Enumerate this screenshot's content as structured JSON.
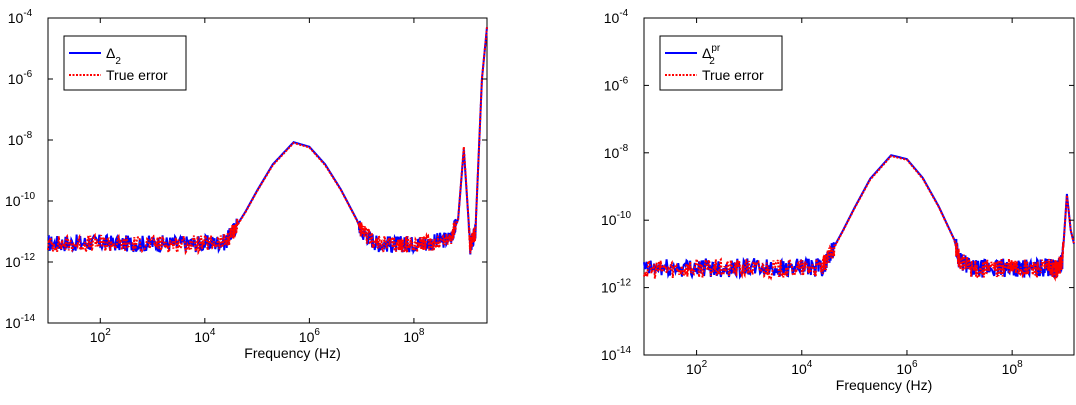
{
  "chart_data": [
    {
      "type": "line",
      "title": "",
      "xlabel": "Frequency (Hz)",
      "ylabel": "",
      "x_scale": "log",
      "y_scale": "log",
      "xlim": [
        10,
        2500000000.0
      ],
      "ylim": [
        1e-14,
        0.0001
      ],
      "xticks": [
        100,
        10000,
        1000000,
        100000000
      ],
      "xtick_labels": [
        {
          "base": "10",
          "exp": "2"
        },
        {
          "base": "10",
          "exp": "4"
        },
        {
          "base": "10",
          "exp": "6"
        },
        {
          "base": "10",
          "exp": "8"
        }
      ],
      "yticks": [
        1e-14,
        1e-12,
        1e-10,
        1e-08,
        1e-06,
        0.0001
      ],
      "ytick_labels": [
        {
          "base": "10",
          "exp": "-14"
        },
        {
          "base": "10",
          "exp": "-12"
        },
        {
          "base": "10",
          "exp": "-10"
        },
        {
          "base": "10",
          "exp": "-8"
        },
        {
          "base": "10",
          "exp": "-6"
        },
        {
          "base": "10",
          "exp": "-4"
        }
      ],
      "grid": false,
      "legend_position": "top-left",
      "series": [
        {
          "name": "Δ",
          "name_sub": "2",
          "name_sup": "",
          "color": "#0000ff",
          "style": "solid",
          "x": [
            10,
            30,
            100,
            300,
            1000,
            3000,
            10000,
            25000,
            40000,
            60000,
            100000,
            200000,
            500000,
            1000000,
            2000000,
            4000000,
            8000000,
            10000000,
            20000000,
            50000000,
            100000000,
            200000000,
            500000000,
            700000000,
            900000000,
            1200000000,
            1500000000,
            2000000000,
            2500000000
          ],
          "y": [
            4e-12,
            4.2e-12,
            4.3e-12,
            4e-12,
            4.1e-12,
            4e-12,
            4e-12,
            4.5e-12,
            1.5e-11,
            4.5e-11,
            2.2e-10,
            1.6e-09,
            8.5e-09,
            6e-09,
            1.6e-09,
            2.4e-10,
            2.5e-11,
            1e-11,
            4e-12,
            3.8e-12,
            4e-12,
            4.2e-12,
            6e-12,
            2.5e-11,
            5e-09,
            3e-12,
            1e-11,
            1e-06,
            5e-05
          ]
        },
        {
          "name": "True error",
          "name_sub": "",
          "name_sup": "",
          "color": "#ff0000",
          "style": "dotted",
          "x": [
            10,
            30,
            100,
            300,
            1000,
            3000,
            10000,
            25000,
            40000,
            60000,
            100000,
            200000,
            500000,
            1000000,
            2000000,
            4000000,
            8000000,
            10000000,
            20000000,
            50000000,
            100000000,
            200000000,
            500000000,
            700000000,
            900000000,
            1200000000,
            1500000000,
            2000000000,
            2500000000
          ],
          "y": [
            3.8e-12,
            4e-12,
            4.1e-12,
            3.9e-12,
            4e-12,
            3.9e-12,
            3.9e-12,
            4.4e-12,
            1.4e-11,
            4.3e-11,
            2.1e-10,
            1.5e-09,
            8e-09,
            5.7e-09,
            1.5e-09,
            2.3e-10,
            2.4e-11,
            1e-11,
            3.9e-12,
            3.7e-12,
            3.9e-12,
            4.1e-12,
            5.8e-12,
            2.4e-11,
            6e-09,
            3e-12,
            1e-11,
            1e-06,
            5e-05
          ]
        }
      ]
    },
    {
      "type": "line",
      "title": "",
      "xlabel": "Frequency (Hz)",
      "ylabel": "",
      "x_scale": "log",
      "y_scale": "log",
      "xlim": [
        10,
        1500000000.0
      ],
      "ylim": [
        1e-14,
        0.0001
      ],
      "xticks": [
        100,
        10000,
        1000000,
        100000000
      ],
      "xtick_labels": [
        {
          "base": "10",
          "exp": "2"
        },
        {
          "base": "10",
          "exp": "4"
        },
        {
          "base": "10",
          "exp": "6"
        },
        {
          "base": "10",
          "exp": "8"
        }
      ],
      "yticks": [
        1e-14,
        1e-12,
        1e-10,
        1e-08,
        1e-06,
        0.0001
      ],
      "ytick_labels": [
        {
          "base": "10",
          "exp": "-14"
        },
        {
          "base": "10",
          "exp": "-12"
        },
        {
          "base": "10",
          "exp": "-10"
        },
        {
          "base": "10",
          "exp": "-8"
        },
        {
          "base": "10",
          "exp": "-6"
        },
        {
          "base": "10",
          "exp": "-4"
        }
      ],
      "grid": false,
      "legend_position": "top-left",
      "series": [
        {
          "name": "Δ",
          "name_sub": "2",
          "name_sup": "pr",
          "color": "#0000ff",
          "style": "solid",
          "x": [
            10,
            30,
            100,
            300,
            1000,
            3000,
            10000,
            25000,
            40000,
            60000,
            100000,
            200000,
            500000,
            1000000,
            2000000,
            4000000,
            8000000,
            10000000,
            20000000,
            50000000,
            100000000,
            200000000,
            500000000,
            700000000,
            900000000,
            1100000000,
            1300000000,
            1500000000
          ],
          "y": [
            3.5e-12,
            3.8e-12,
            4e-12,
            3.8e-12,
            4e-12,
            3.8e-12,
            3.8e-12,
            4e-12,
            1.5e-11,
            4.8e-11,
            2.3e-10,
            1.7e-09,
            8.5e-09,
            6.5e-09,
            1.8e-09,
            2.6e-10,
            2.6e-11,
            6e-12,
            3.5e-12,
            3.8e-12,
            4e-12,
            3.6e-12,
            4e-12,
            3.5e-12,
            6e-12,
            6e-10,
            5e-11,
            2e-11
          ]
        },
        {
          "name": "True error",
          "name_sub": "",
          "name_sup": "",
          "color": "#ff0000",
          "style": "dotted",
          "x": [
            10,
            30,
            100,
            300,
            1000,
            3000,
            10000,
            25000,
            40000,
            60000,
            100000,
            200000,
            500000,
            1000000,
            2000000,
            4000000,
            8000000,
            10000000,
            20000000,
            50000000,
            100000000,
            200000000,
            500000000,
            700000000,
            900000000,
            1100000000,
            1300000000,
            1500000000
          ],
          "y": [
            3.3e-12,
            3.6e-12,
            3.8e-12,
            3.6e-12,
            3.8e-12,
            3.6e-12,
            3.6e-12,
            3.9e-12,
            1.4e-11,
            4.6e-11,
            2.2e-10,
            1.6e-09,
            8e-09,
            6.2e-09,
            1.7e-09,
            2.5e-10,
            2.5e-11,
            6e-12,
            3.4e-12,
            3.7e-12,
            3.9e-12,
            3.5e-12,
            3.9e-12,
            3.4e-12,
            6e-12,
            5.5e-10,
            5e-11,
            2e-11
          ]
        }
      ]
    }
  ]
}
